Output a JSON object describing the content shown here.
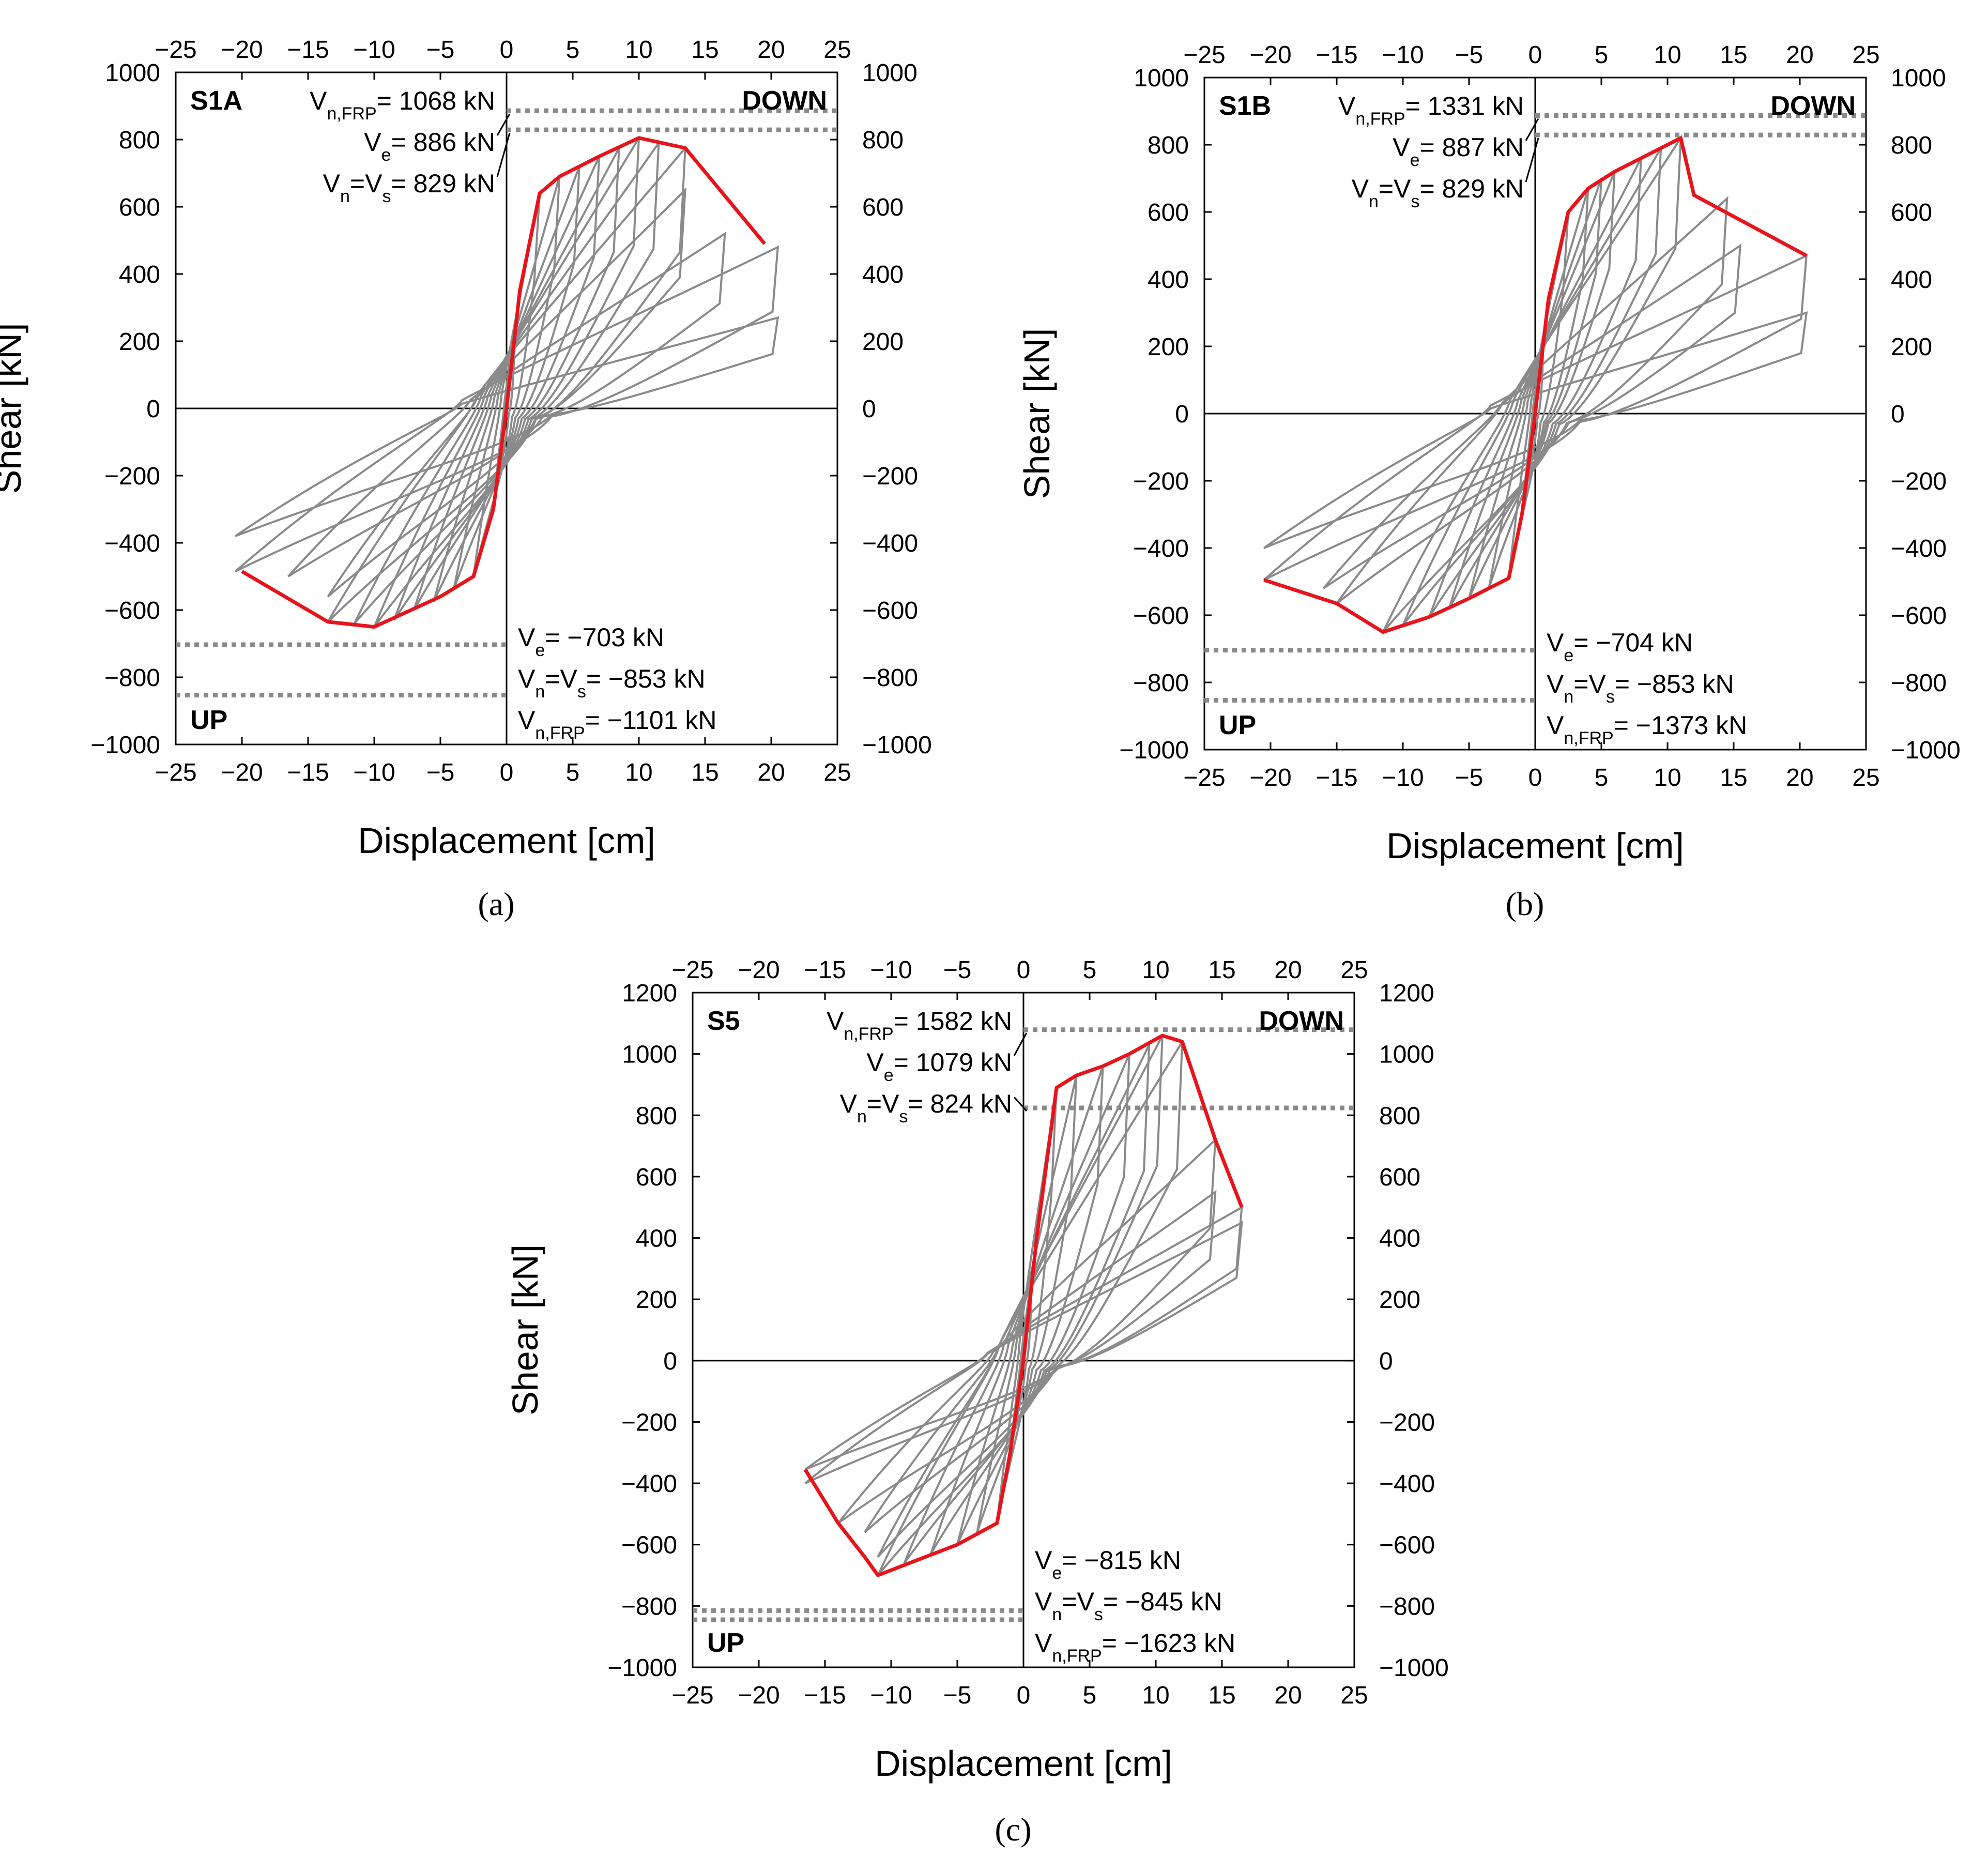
{
  "chart_data": [
    {
      "type": "line",
      "panel_label": "(a)",
      "specimen": "S1A",
      "xlabel": "Displacement [cm]",
      "ylabel": "Shear [kN]",
      "xlim": [
        -25,
        25
      ],
      "ylim": [
        -1000,
        1000
      ],
      "xticks": [
        "−25",
        "−20",
        "−15",
        "−10",
        "−5",
        "0",
        "5",
        "10",
        "15",
        "20",
        "25"
      ],
      "yticks": [
        "−1000",
        "−800",
        "−600",
        "−400",
        "−200",
        "0",
        "200",
        "400",
        "600",
        "800",
        "1000"
      ],
      "direction_labels": {
        "down": "DOWN",
        "up": "UP"
      },
      "annotations_top": {
        "vnfrp_prefix": "V",
        "vnfrp_sub": "n,FRP",
        "vnfrp_value": "= 1068 kN",
        "ve_prefix": "V",
        "ve_sub": "e",
        "ve_value": "= 886 kN",
        "vn_prefix": "V",
        "vn_sub": "n",
        "vn_mid": "=V",
        "vs_sub": "s",
        "vn_value": "= 829 kN"
      },
      "annotations_bottom": {
        "ve_prefix": "V",
        "ve_sub": "e",
        "ve_value": "= −703 kN",
        "vn_prefix": "V",
        "vn_sub": "n",
        "vn_mid": "=V",
        "vs_sub": "s",
        "vn_value": "= −853 kN",
        "vnfrp_prefix": "V",
        "vnfrp_sub": "n,FRP",
        "vnfrp_value": "= −1101 kN"
      },
      "reference_lines": {
        "ve_pos": 886,
        "vn_pos": 829,
        "ve_neg": -703,
        "vn_neg": -853
      },
      "envelope": {
        "x": [
          -20.0,
          -13.5,
          -10.0,
          -5.0,
          -2.5,
          -1.0,
          0.0,
          1.0,
          2.5,
          4.0,
          7.0,
          10.0,
          13.5,
          19.5
        ],
        "y": [
          -485,
          -635,
          -650,
          -560,
          -500,
          -300,
          0,
          350,
          640,
          690,
          750,
          805,
          775,
          490
        ]
      },
      "cycles": [
        {
          "amp_pos": 1.0,
          "v_pos": 350,
          "amp_neg": -1.0,
          "v_neg": -300
        },
        {
          "amp_pos": 2.5,
          "v_pos": 640,
          "amp_neg": -2.5,
          "v_neg": -500
        },
        {
          "amp_pos": 4.0,
          "v_pos": 690,
          "amp_neg": -4.0,
          "v_neg": -540
        },
        {
          "amp_pos": 5.5,
          "v_pos": 720,
          "amp_neg": -5.5,
          "v_neg": -575
        },
        {
          "amp_pos": 7.0,
          "v_pos": 750,
          "amp_neg": -7.0,
          "v_neg": -600
        },
        {
          "amp_pos": 8.5,
          "v_pos": 775,
          "amp_neg": -8.5,
          "v_neg": -630
        },
        {
          "amp_pos": 10.0,
          "v_pos": 805,
          "amp_neg": -10.0,
          "v_neg": -650
        },
        {
          "amp_pos": 11.5,
          "v_pos": 790,
          "amp_neg": -11.5,
          "v_neg": -640
        },
        {
          "amp_pos": 13.5,
          "v_pos": 775,
          "amp_neg": -13.5,
          "v_neg": -635
        },
        {
          "amp_pos": 13.5,
          "v_pos": 650,
          "amp_neg": -13.5,
          "v_neg": -560
        },
        {
          "amp_pos": 16.5,
          "v_pos": 520,
          "amp_neg": -16.5,
          "v_neg": -500
        },
        {
          "amp_pos": 20.5,
          "v_pos": 480,
          "amp_neg": -20.5,
          "v_neg": -485
        },
        {
          "amp_pos": 20.5,
          "v_pos": 270,
          "amp_neg": -20.5,
          "v_neg": -380
        }
      ]
    },
    {
      "type": "line",
      "panel_label": "(b)",
      "specimen": "S1B",
      "xlabel": "Displacement [cm]",
      "ylabel": "Shear [kN]",
      "xlim": [
        -25,
        25
      ],
      "ylim": [
        -1000,
        1000
      ],
      "xticks": [
        "−25",
        "−20",
        "−15",
        "−10",
        "−5",
        "0",
        "5",
        "10",
        "15",
        "20",
        "25"
      ],
      "yticks": [
        "−1000",
        "−800",
        "−600",
        "−400",
        "−200",
        "0",
        "200",
        "400",
        "600",
        "800",
        "1000"
      ],
      "direction_labels": {
        "down": "DOWN",
        "up": "UP"
      },
      "annotations_top": {
        "vnfrp_prefix": "V",
        "vnfrp_sub": "n,FRP",
        "vnfrp_value": "= 1331 kN",
        "ve_prefix": "V",
        "ve_sub": "e",
        "ve_value": "= 887 kN",
        "vn_prefix": "V",
        "vn_sub": "n",
        "vn_mid": "=V",
        "vs_sub": "s",
        "vn_value": "= 829 kN"
      },
      "annotations_bottom": {
        "ve_prefix": "V",
        "ve_sub": "e",
        "ve_value": "= −704 kN",
        "vn_prefix": "V",
        "vn_sub": "n",
        "vn_mid": "=V",
        "vs_sub": "s",
        "vn_value": "= −853 kN",
        "vnfrp_prefix": "V",
        "vnfrp_sub": "n,FRP",
        "vnfrp_value": "= −1373 kN"
      },
      "reference_lines": {
        "ve_pos": 887,
        "vn_pos": 829,
        "ve_neg": -704,
        "vn_neg": -853
      },
      "envelope": {
        "x": [
          -20.5,
          -15.0,
          -11.5,
          -8.0,
          -5.0,
          -2.0,
          -1.0,
          0.0,
          1.0,
          2.5,
          4.0,
          6.0,
          8.0,
          11.0,
          12.0,
          20.5
        ],
        "y": [
          -495,
          -565,
          -650,
          -605,
          -550,
          -490,
          -300,
          0,
          340,
          600,
          670,
          720,
          760,
          820,
          650,
          470
        ]
      },
      "cycles": [
        {
          "amp_pos": 1.0,
          "v_pos": 340,
          "amp_neg": -1.0,
          "v_neg": -300
        },
        {
          "amp_pos": 2.5,
          "v_pos": 600,
          "amp_neg": -2.0,
          "v_neg": -490
        },
        {
          "amp_pos": 4.0,
          "v_pos": 670,
          "amp_neg": -3.5,
          "v_neg": -520
        },
        {
          "amp_pos": 5.0,
          "v_pos": 700,
          "amp_neg": -5.0,
          "v_neg": -550
        },
        {
          "amp_pos": 6.0,
          "v_pos": 720,
          "amp_neg": -6.5,
          "v_neg": -580
        },
        {
          "amp_pos": 8.0,
          "v_pos": 760,
          "amp_neg": -8.0,
          "v_neg": -605
        },
        {
          "amp_pos": 9.5,
          "v_pos": 790,
          "amp_neg": -10.0,
          "v_neg": -630
        },
        {
          "amp_pos": 11.0,
          "v_pos": 820,
          "amp_neg": -11.5,
          "v_neg": -650
        },
        {
          "amp_pos": 14.5,
          "v_pos": 640,
          "amp_neg": -15.0,
          "v_neg": -565
        },
        {
          "amp_pos": 15.5,
          "v_pos": 500,
          "amp_neg": -16.0,
          "v_neg": -520
        },
        {
          "amp_pos": 20.5,
          "v_pos": 470,
          "amp_neg": -20.5,
          "v_neg": -495
        },
        {
          "amp_pos": 20.5,
          "v_pos": 300,
          "amp_neg": -20.5,
          "v_neg": -400
        }
      ]
    },
    {
      "type": "line",
      "panel_label": "(c)",
      "specimen": "S5",
      "xlabel": "Displacement [cm]",
      "ylabel": "Shear [kN]",
      "xlim": [
        -25,
        25
      ],
      "ylim": [
        -1000,
        1200
      ],
      "xticks": [
        "−25",
        "−20",
        "−15",
        "−10",
        "−5",
        "0",
        "5",
        "10",
        "15",
        "20",
        "25"
      ],
      "yticks": [
        "−1000",
        "−800",
        "−600",
        "−400",
        "−200",
        "0",
        "200",
        "400",
        "600",
        "800",
        "1000",
        "1200"
      ],
      "direction_labels": {
        "down": "DOWN",
        "up": "UP"
      },
      "annotations_top": {
        "vnfrp_prefix": "V",
        "vnfrp_sub": "n,FRP",
        "vnfrp_value": "= 1582 kN",
        "ve_prefix": "V",
        "ve_sub": "e",
        "ve_value": "= 1079 kN",
        "vn_prefix": "V",
        "vn_sub": "n",
        "vn_mid": "=V",
        "vs_sub": "s",
        "vn_value": "= 824 kN"
      },
      "annotations_bottom": {
        "ve_prefix": "V",
        "ve_sub": "e",
        "ve_value": "= −815 kN",
        "vn_prefix": "V",
        "vn_sub": "n",
        "vn_mid": "=V",
        "vs_sub": "s",
        "vn_value": "= −845 kN",
        "vnfrp_prefix": "V",
        "vnfrp_sub": "n,FRP",
        "vnfrp_value": "= −1623 kN"
      },
      "reference_lines": {
        "ve_pos": 1079,
        "vn_pos": 824,
        "ve_neg": -815,
        "vn_neg": -845
      },
      "envelope": {
        "x": [
          -16.5,
          -14.0,
          -12.0,
          -11.0,
          -5.0,
          -2.0,
          -1.0,
          0.0,
          1.0,
          2.5,
          4.0,
          6.0,
          8.0,
          10.5,
          12.0,
          14.5,
          16.5
        ],
        "y": [
          -355,
          -530,
          -640,
          -700,
          -600,
          -530,
          -300,
          0,
          400,
          890,
          930,
          960,
          1000,
          1060,
          1040,
          720,
          500
        ]
      },
      "cycles": [
        {
          "amp_pos": 1.0,
          "v_pos": 400,
          "amp_neg": -1.0,
          "v_neg": -300
        },
        {
          "amp_pos": 2.5,
          "v_pos": 890,
          "amp_neg": -2.0,
          "v_neg": -530
        },
        {
          "amp_pos": 4.0,
          "v_pos": 930,
          "amp_neg": -3.5,
          "v_neg": -560
        },
        {
          "amp_pos": 6.0,
          "v_pos": 960,
          "amp_neg": -5.0,
          "v_neg": -600
        },
        {
          "amp_pos": 8.0,
          "v_pos": 1000,
          "amp_neg": -7.0,
          "v_neg": -630
        },
        {
          "amp_pos": 9.5,
          "v_pos": 1030,
          "amp_neg": -9.0,
          "v_neg": -660
        },
        {
          "amp_pos": 10.5,
          "v_pos": 1060,
          "amp_neg": -11.0,
          "v_neg": -700
        },
        {
          "amp_pos": 12.0,
          "v_pos": 1040,
          "amp_neg": -11.0,
          "v_neg": -640
        },
        {
          "amp_pos": 14.5,
          "v_pos": 720,
          "amp_neg": -12.0,
          "v_neg": -560
        },
        {
          "amp_pos": 14.5,
          "v_pos": 550,
          "amp_neg": -14.0,
          "v_neg": -530
        },
        {
          "amp_pos": 16.5,
          "v_pos": 500,
          "amp_neg": -16.5,
          "v_neg": -355
        },
        {
          "amp_pos": 16.5,
          "v_pos": 450,
          "amp_neg": -16.5,
          "v_neg": -400
        }
      ]
    }
  ]
}
